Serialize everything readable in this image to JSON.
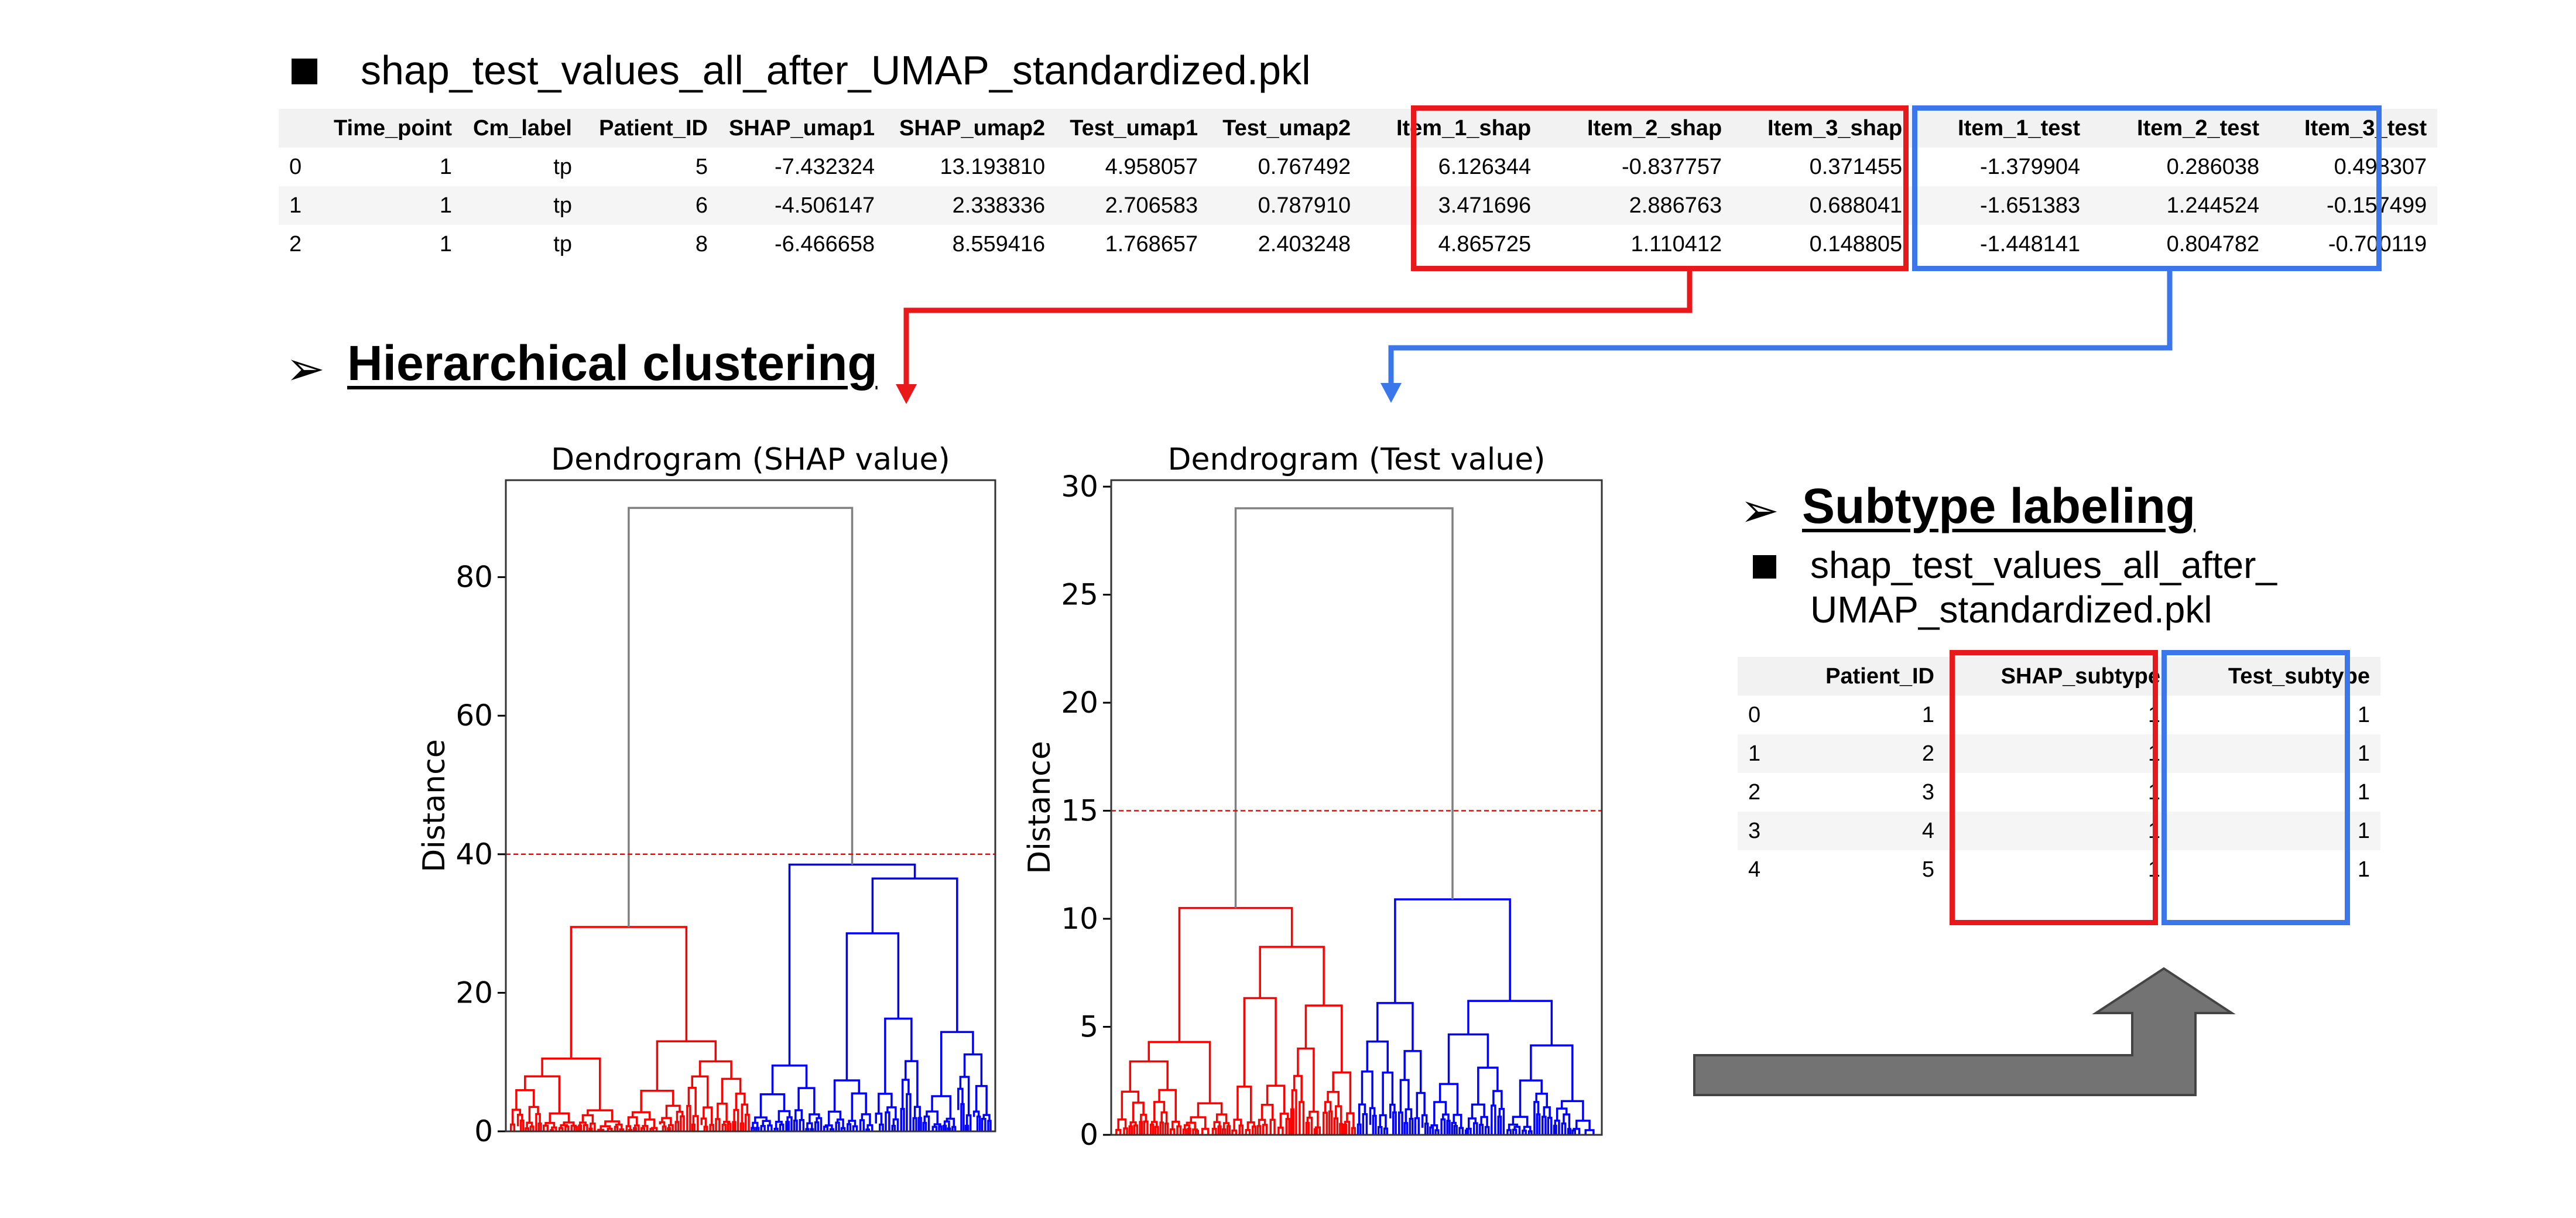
{
  "top": {
    "file_name": "shap_test_values_all_after_UMAP_standardized.pkl",
    "table": {
      "columns": [
        "",
        "Time_point",
        "Cm_label",
        "Patient_ID",
        "SHAP_umap1",
        "SHAP_umap2",
        "Test_umap1",
        "Test_umap2",
        "Item_1_shap",
        "Item_2_shap",
        "Item_3_shap",
        "Item_1_test",
        "Item_2_test",
        "Item_3_test"
      ],
      "rows": [
        [
          "0",
          "1",
          "tp",
          "5",
          "-7.432324",
          "13.193810",
          "4.958057",
          "0.767492",
          "6.126344",
          "-0.837757",
          "0.371455",
          "-1.379904",
          "0.286038",
          "0.498307"
        ],
        [
          "1",
          "1",
          "tp",
          "6",
          "-4.506147",
          "2.338336",
          "2.706583",
          "0.787910",
          "3.471696",
          "2.886763",
          "0.688041",
          "-1.651383",
          "1.244524",
          "-0.157499"
        ],
        [
          "2",
          "1",
          "tp",
          "8",
          "-6.466658",
          "8.559416",
          "1.768657",
          "2.403248",
          "4.865725",
          "1.110412",
          "0.148805",
          "-1.448141",
          "0.804782",
          "-0.700119"
        ]
      ]
    }
  },
  "clustering": {
    "title": "Hierarchical clustering",
    "bullet": "➢"
  },
  "labeling": {
    "title": "Subtype labeling",
    "bullet": "➢",
    "file_line1": "shap_test_values_all_after_",
    "file_line2": "UMAP_standardized.pkl",
    "table": {
      "columns": [
        "",
        "Patient_ID",
        "SHAP_subtype",
        "Test_subtype"
      ],
      "rows": [
        [
          "0",
          "1",
          "1",
          "1"
        ],
        [
          "1",
          "2",
          "1",
          "1"
        ],
        [
          "2",
          "3",
          "1",
          "1"
        ],
        [
          "3",
          "4",
          "1",
          "1"
        ],
        [
          "4",
          "5",
          "1",
          "1"
        ]
      ]
    }
  },
  "colors": {
    "red": "#e8181b",
    "blue": "#3b76ea",
    "dendro_red": "#ff0000",
    "dendro_blue": "#0000ff",
    "link_gray": "#808080",
    "arrow_gray": "#707070"
  },
  "chart_data": [
    {
      "type": "dendrogram",
      "title": "Dendrogram (SHAP value)",
      "ylabel": "Distance",
      "ylim": [
        0,
        94
      ],
      "yticks": [
        0,
        20,
        40,
        60,
        80
      ],
      "threshold": 40,
      "top_merge": 90,
      "clusters": [
        {
          "color": "#ff0000",
          "root_height": 29.5,
          "child_heights": [
            10.5,
            13
          ]
        },
        {
          "color": "#0000ff",
          "root_height": 38.5,
          "child_heights": [
            9.5,
            36.5
          ]
        }
      ]
    },
    {
      "type": "dendrogram",
      "title": "Dendrogram (Test value)",
      "ylabel": "Distance",
      "ylim": [
        0,
        30.3
      ],
      "yticks": [
        0,
        5,
        10,
        15,
        20,
        25,
        30
      ],
      "threshold": 15,
      "top_merge": 29,
      "clusters": [
        {
          "color": "#ff0000",
          "root_height": 10.5,
          "child_heights": [
            4.3,
            8.7
          ]
        },
        {
          "color": "#0000ff",
          "root_height": 10.9,
          "child_heights": [
            6.1,
            6.2
          ]
        }
      ]
    }
  ]
}
